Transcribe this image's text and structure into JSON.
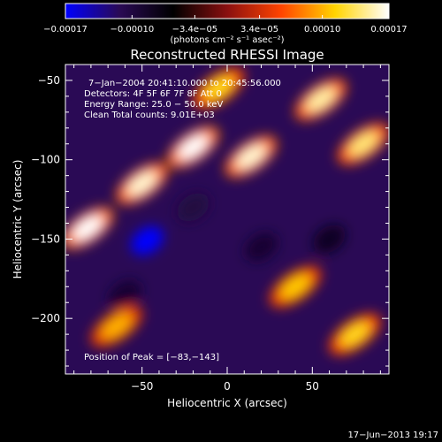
{
  "chart_data": {
    "type": "heatmap",
    "title": "Reconstructed RHESSI Image",
    "xlabel": "Heliocentric X (arcsec)",
    "ylabel": "Heliocentric Y (arcsec)",
    "xlim": [
      -95,
      95
    ],
    "ylim": [
      -235,
      -40
    ],
    "x_ticks": [
      -50,
      0,
      50
    ],
    "x_tick_labels": [
      "−50",
      "0",
      "50"
    ],
    "y_ticks": [
      -50,
      -100,
      -150,
      -200
    ],
    "y_tick_labels": [
      "−50",
      "−100",
      "−150",
      "−200"
    ],
    "colorbar": {
      "range": [
        -0.00017,
        0.00017
      ],
      "ticks": [
        -0.00017,
        -0.0001,
        -3.4e-05,
        3.4e-05,
        0.0001,
        0.00017
      ],
      "tick_labels": [
        "−0.00017",
        "−0.00010",
        "−3.4e−05",
        "3.4e−05",
        "0.00010",
        "0.00017"
      ],
      "unit_label": "(photons cm⁻² s⁻¹ asec⁻²)",
      "colors": [
        "#0000ff",
        "#2a0a55",
        "#000000",
        "#8a1010",
        "#ff4400",
        "#ffd400",
        "#ffffff"
      ]
    },
    "annotations": {
      "time_range": "7−Jan−2004 20:41:10.000 to 20:45:56.000",
      "detectors": "Detectors: 4F 5F 6F 7F 8F  Att 0",
      "energy": "Energy Range: 25.0 − 50.0 keV",
      "clean": "Clean     Total counts: 9.01E+03",
      "peak": "Position of Peak = [−83,−143]"
    },
    "peak_position": [
      -83,
      -143
    ],
    "bright_sources": [
      {
        "x": -82,
        "y": -143,
        "value": 0.00017
      },
      {
        "x": -50,
        "y": -115,
        "value": 0.00016
      },
      {
        "x": -20,
        "y": -92,
        "value": 0.00017
      },
      {
        "x": 14,
        "y": -98,
        "value": 0.00016
      },
      {
        "x": 55,
        "y": -62,
        "value": 0.00015
      },
      {
        "x": 80,
        "y": -90,
        "value": 0.00014
      },
      {
        "x": -5,
        "y": -55,
        "value": 0.00012
      },
      {
        "x": 40,
        "y": -180,
        "value": 0.00011
      },
      {
        "x": -65,
        "y": -205,
        "value": 0.0001
      },
      {
        "x": 75,
        "y": -210,
        "value": 0.00012
      }
    ],
    "negative_sources": [
      {
        "x": -47,
        "y": -151,
        "value": -0.00017
      },
      {
        "x": -20,
        "y": -130,
        "value": -0.0001
      },
      {
        "x": 20,
        "y": -155,
        "value": -9e-05
      },
      {
        "x": -60,
        "y": -185,
        "value": -9e-05
      },
      {
        "x": 60,
        "y": -150,
        "value": -8e-05
      }
    ]
  },
  "footer": {
    "date": "17−Jun−2013 19:17"
  }
}
